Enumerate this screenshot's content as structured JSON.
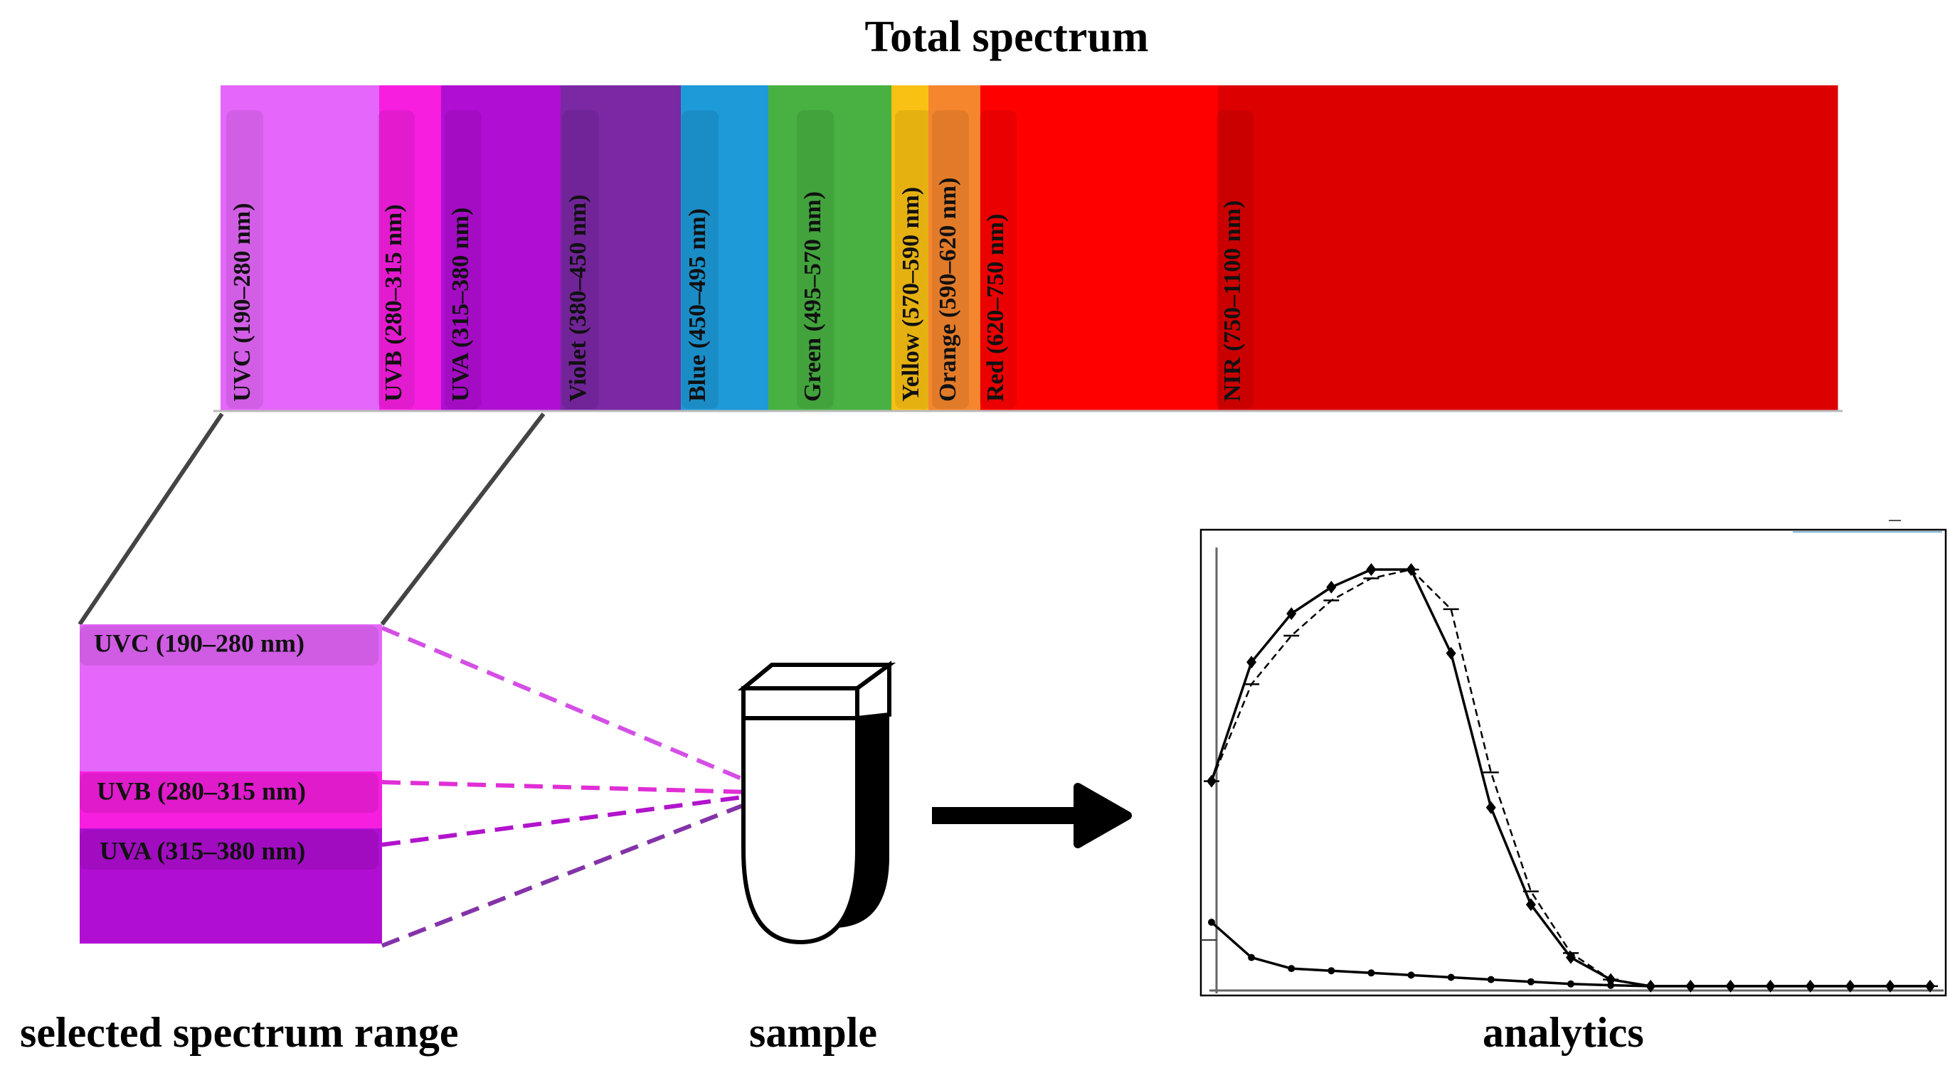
{
  "title": "Total spectrum",
  "spectrum_bands": [
    {
      "label": "UVC (190–280 nm)",
      "color": "#e466fa"
    },
    {
      "label": "UVB (280–315 nm)",
      "color": "#f71ee0"
    },
    {
      "label": "UVA (315–380 nm)",
      "color": "#b10ed4"
    },
    {
      "label": "Violet (380–450 nm)",
      "color": "#7b28a4"
    },
    {
      "label": "Blue (450–495 nm)",
      "color": "#1d9ad8"
    },
    {
      "label": "Green (495–570 nm)",
      "color": "#48b142"
    },
    {
      "label": "Yellow (570–590 nm)",
      "color": "#f9c113"
    },
    {
      "label": "Orange (590–620 nm)",
      "color": "#f6862d"
    },
    {
      "label": "Red (620–750 nm)",
      "color": "#fe0000"
    },
    {
      "label": "NIR (750–1100 nm)",
      "color": "#dc0000"
    }
  ],
  "selected_bands": [
    {
      "label": "UVC (190–280 nm)",
      "color": "#e466fa"
    },
    {
      "label": "UVB (280–315 nm)",
      "color": "#f71ee0"
    },
    {
      "label": "UVA (315–380 nm)",
      "color": "#b10ed4"
    }
  ],
  "captions": {
    "selected": "selected spectrum range",
    "sample": "sample",
    "analytics": "analytics"
  },
  "chart_data": {
    "type": "line",
    "title": "",
    "xlabel": "",
    "ylabel": "",
    "x": [
      1,
      2,
      3,
      4,
      5,
      6,
      7,
      8,
      9,
      10,
      11,
      12,
      13,
      14,
      15,
      16,
      17,
      18,
      19
    ],
    "ylim": [
      0,
      100
    ],
    "series": [
      {
        "marker": "diamond",
        "line": "solid",
        "values": [
          47,
          74,
          85,
          91,
          95,
          95,
          76,
          41,
          19,
          7,
          2,
          0.5,
          0.5,
          0.5,
          0.5,
          0.5,
          0.5,
          0.5,
          0.5
        ]
      },
      {
        "marker": "tick",
        "line": "dashed",
        "values": [
          47,
          69,
          80,
          88,
          93,
          95,
          86,
          49,
          22,
          8,
          2,
          0.5,
          0.5,
          0.5,
          0.5,
          0.5,
          0.5,
          0.5,
          0.5
        ]
      },
      {
        "marker": "dot",
        "line": "solid",
        "values": [
          15,
          7,
          4.5,
          4,
          3.5,
          3,
          2.5,
          2,
          1.5,
          1,
          0.7,
          0.5,
          0.5,
          0.5,
          0.5,
          0.5,
          0.5,
          0.5,
          0.5
        ]
      }
    ]
  }
}
